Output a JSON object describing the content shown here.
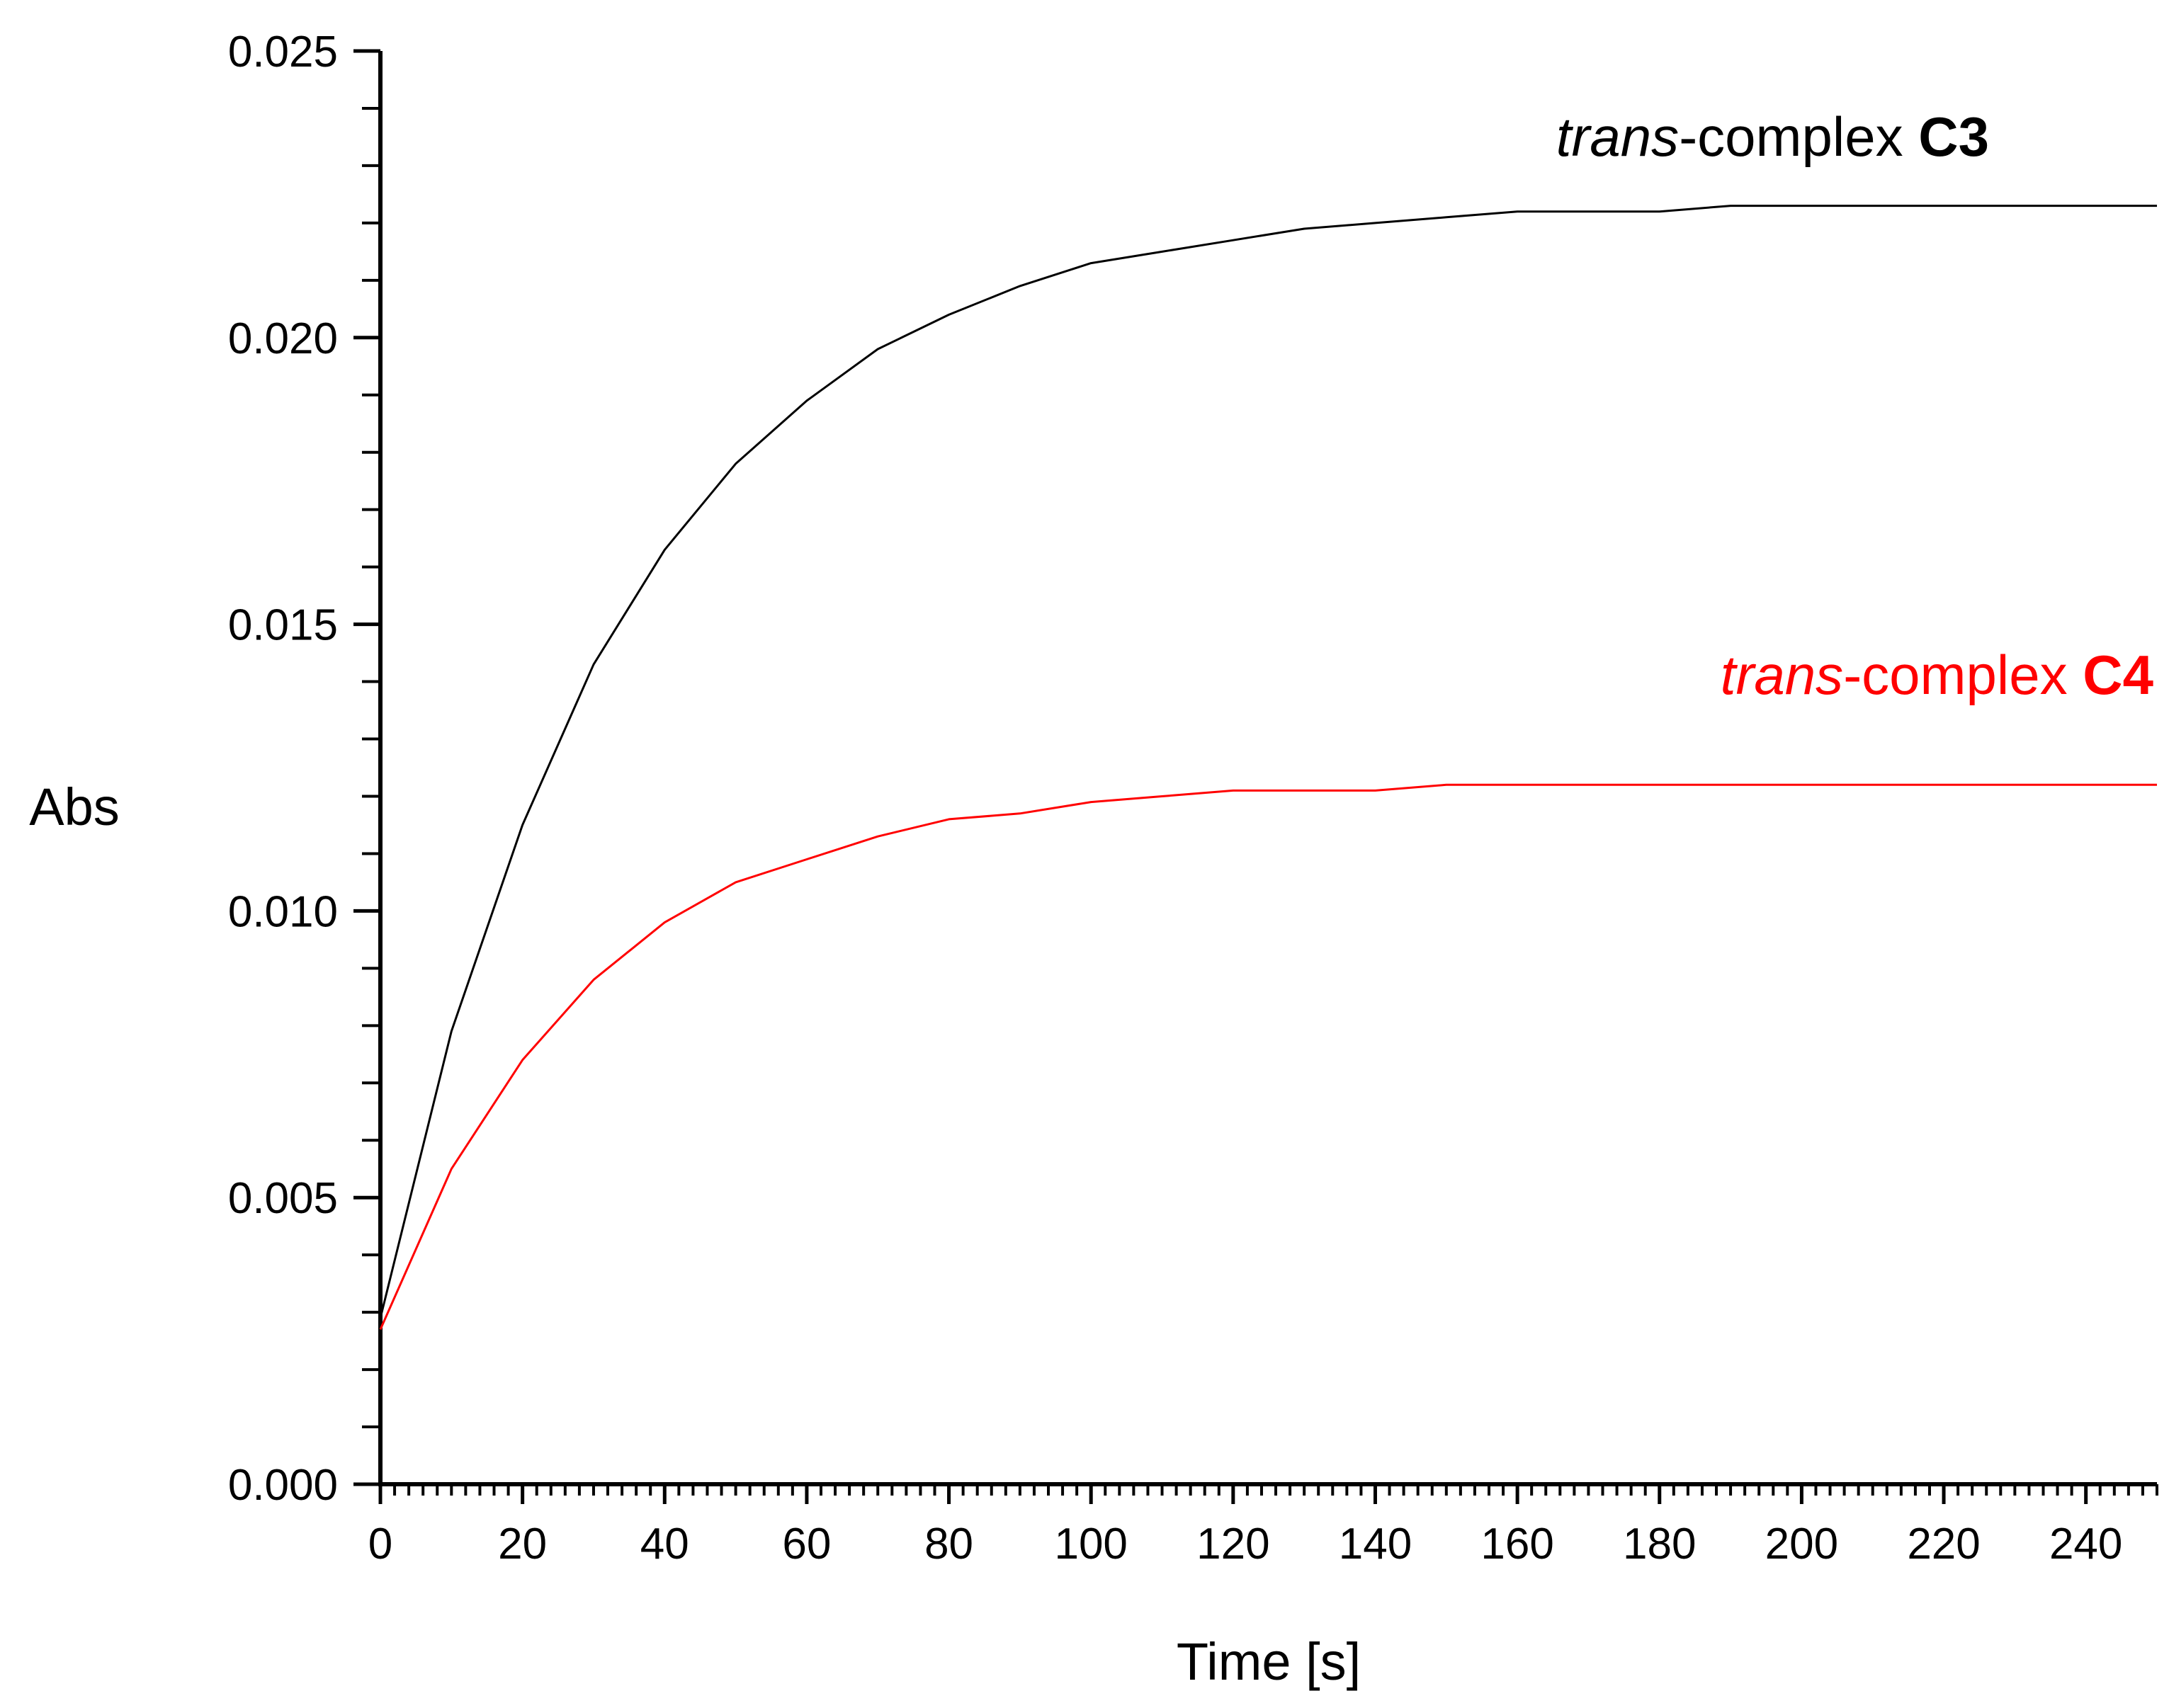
{
  "chart_data": {
    "type": "line",
    "title": "",
    "xlabel": "Time [s]",
    "ylabel": "Abs",
    "xlim": [
      0,
      250
    ],
    "ylim": [
      0,
      0.025
    ],
    "x_ticks": [
      0,
      20,
      40,
      60,
      80,
      100,
      120,
      140,
      160,
      180,
      200,
      220,
      240
    ],
    "x_tick_labels": [
      "0",
      "20",
      "40",
      "60",
      "80",
      "100",
      "120",
      "140",
      "160",
      "180",
      "200",
      "220",
      "240"
    ],
    "y_ticks": [
      0,
      0.005,
      0.01,
      0.015,
      0.02,
      0.025
    ],
    "y_tick_labels": [
      "0.000",
      "0.005",
      "0.010",
      "0.015",
      "0.020",
      "0.025"
    ],
    "grid": false,
    "legend": "none",
    "series": [
      {
        "name": "trans-complex C3",
        "label_parts": {
          "italic": "trans",
          "normal": "-complex ",
          "bold": "C3"
        },
        "color": "#000000",
        "x": [
          0,
          10,
          20,
          30,
          40,
          50,
          60,
          70,
          80,
          90,
          100,
          110,
          120,
          130,
          140,
          150,
          160,
          170,
          180,
          190,
          200,
          210,
          220,
          230,
          240,
          250
        ],
        "y": [
          0.0029,
          0.0079,
          0.0115,
          0.0143,
          0.0163,
          0.0178,
          0.0189,
          0.0198,
          0.0204,
          0.0209,
          0.0213,
          0.0215,
          0.0217,
          0.0219,
          0.022,
          0.0221,
          0.0222,
          0.0222,
          0.0222,
          0.0223,
          0.0223,
          0.0223,
          0.0223,
          0.0223,
          0.0223,
          0.0223
        ]
      },
      {
        "name": "trans-complex C4",
        "label_parts": {
          "italic": "trans",
          "normal": "-complex ",
          "bold": "C4"
        },
        "color": "#ff0000",
        "x": [
          0,
          10,
          20,
          30,
          40,
          50,
          60,
          70,
          80,
          90,
          100,
          110,
          120,
          130,
          140,
          150,
          160,
          170,
          180,
          190,
          200,
          210,
          220,
          230,
          240,
          250
        ],
        "y": [
          0.0027,
          0.0055,
          0.0074,
          0.0088,
          0.0098,
          0.0105,
          0.0109,
          0.0113,
          0.0116,
          0.0117,
          0.0119,
          0.012,
          0.0121,
          0.0121,
          0.0121,
          0.0122,
          0.0122,
          0.0122,
          0.0122,
          0.0122,
          0.0122,
          0.0122,
          0.0122,
          0.0122,
          0.0122,
          0.0122
        ]
      }
    ]
  }
}
